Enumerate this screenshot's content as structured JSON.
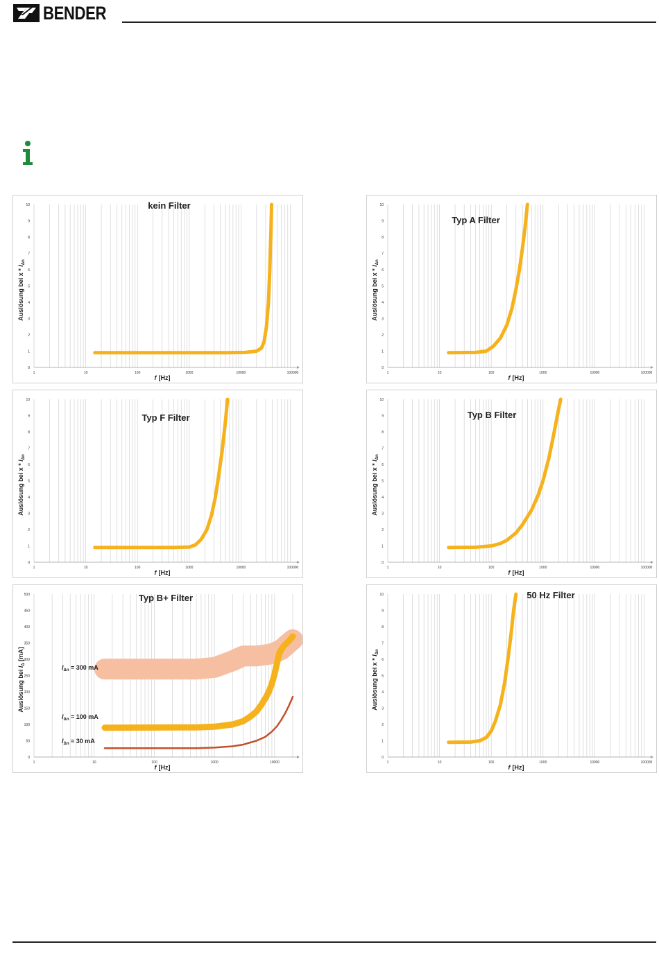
{
  "header": {
    "brand": "BENDER",
    "logo_icon": "bender-logo-icon"
  },
  "info_icon": "info-icon",
  "colors": {
    "curve": "#F5B21C",
    "band_300": "#F6BFA2",
    "curve_30": "#C2502A",
    "grid": "#D2D2D2",
    "info": "#1E8A3C"
  },
  "chart_data": [
    {
      "type": "line",
      "title": "kein Filter",
      "x_scale": "log",
      "xlim": [
        1,
        100000
      ],
      "x_ticks": [
        "1",
        "10",
        "100",
        "1000",
        "10000",
        "100000"
      ],
      "ylim": [
        0,
        10
      ],
      "y_ticks": [
        "0",
        "1",
        "2",
        "3",
        "4",
        "5",
        "6",
        "7",
        "8",
        "9",
        "10"
      ],
      "xlabel_italic": "f",
      "xlabel_unit": "[Hz]",
      "ylabel_text": "Auslösung bei x * ",
      "ylabel_italic": "I",
      "ylabel_sub": "Δn",
      "series": [
        {
          "x": [
            15,
            1000,
            5000,
            12000,
            20000,
            25000,
            28000,
            31000,
            34000,
            36000,
            38000,
            39000
          ],
          "y": [
            0.9,
            0.9,
            0.9,
            0.92,
            1.0,
            1.2,
            1.6,
            2.5,
            4.0,
            6.0,
            8.5,
            10
          ]
        }
      ]
    },
    {
      "type": "line",
      "title": "Typ A Filter",
      "x_scale": "log",
      "xlim": [
        1,
        100000
      ],
      "x_ticks": [
        "1",
        "10",
        "100",
        "1000",
        "10000",
        "100000"
      ],
      "ylim": [
        0,
        10
      ],
      "y_ticks": [
        "0",
        "1",
        "2",
        "3",
        "4",
        "5",
        "6",
        "7",
        "8",
        "9",
        "10"
      ],
      "xlabel_italic": "f",
      "xlabel_unit": "[Hz]",
      "ylabel_text": "Auslösung bei x * ",
      "ylabel_italic": "I",
      "ylabel_sub": "Δn",
      "series": [
        {
          "x": [
            15,
            50,
            80,
            110,
            150,
            200,
            250,
            300,
            350,
            400,
            450,
            500
          ],
          "y": [
            0.9,
            0.92,
            1.0,
            1.3,
            1.8,
            2.6,
            3.6,
            4.8,
            6.0,
            7.3,
            8.6,
            10
          ]
        }
      ]
    },
    {
      "type": "line",
      "title": "Typ F Filter",
      "x_scale": "log",
      "xlim": [
        1,
        100000
      ],
      "x_ticks": [
        "1",
        "10",
        "100",
        "1000",
        "10000",
        "100000"
      ],
      "ylim": [
        0,
        10
      ],
      "y_ticks": [
        "0",
        "1",
        "2",
        "3",
        "4",
        "5",
        "6",
        "7",
        "8",
        "9",
        "10"
      ],
      "xlabel_italic": "f",
      "xlabel_unit": "[Hz]",
      "ylabel_text": "Auslösung bei x * ",
      "ylabel_italic": "I",
      "ylabel_sub": "Δn",
      "series": [
        {
          "x": [
            15,
            500,
            1000,
            1300,
            1700,
            2200,
            2700,
            3200,
            3700,
            4300,
            5000,
            5500
          ],
          "y": [
            0.9,
            0.9,
            0.93,
            1.05,
            1.4,
            2.0,
            2.9,
            4.0,
            5.3,
            6.8,
            8.6,
            10
          ]
        }
      ]
    },
    {
      "type": "line",
      "title": "Typ B Filter",
      "x_scale": "log",
      "xlim": [
        1,
        100000
      ],
      "x_ticks": [
        "1",
        "10",
        "100",
        "1000",
        "10000",
        "100000"
      ],
      "ylim": [
        0,
        10
      ],
      "y_ticks": [
        "0",
        "1",
        "2",
        "3",
        "4",
        "5",
        "6",
        "7",
        "8",
        "9",
        "10"
      ],
      "xlabel_italic": "f",
      "xlabel_unit": "[Hz]",
      "ylabel_text": "Auslösung bei x * ",
      "ylabel_italic": "I",
      "ylabel_sub": "Δn",
      "series": [
        {
          "x": [
            15,
            50,
            100,
            150,
            200,
            300,
            400,
            600,
            800,
            1000,
            1300,
            1600,
            2000,
            2200
          ],
          "y": [
            0.9,
            0.92,
            1.0,
            1.15,
            1.35,
            1.8,
            2.3,
            3.2,
            4.1,
            5.0,
            6.4,
            7.8,
            9.4,
            10
          ]
        }
      ]
    },
    {
      "type": "line",
      "title": "Typ B+ Filter",
      "x_scale": "log",
      "xlim": [
        1,
        20000
      ],
      "x_ticks": [
        "1",
        "10",
        "100",
        "1000",
        "10000"
      ],
      "ylim": [
        0,
        500
      ],
      "y_ticks": [
        "0",
        "50",
        "100",
        "150",
        "200",
        "250",
        "300",
        "350",
        "400",
        "450",
        "500"
      ],
      "xlabel_italic": "f",
      "xlabel_unit": "[Hz]",
      "ylabel_text": "Auslösung bei ",
      "ylabel_italic": "I",
      "ylabel_sub": "Δ",
      "ylabel_unit": " [mA]",
      "series": [
        {
          "name_italic": "I",
          "name_sub": "Δn",
          "name_rest": " = 300 mA",
          "x": [
            15,
            100,
            500,
            1000,
            2000,
            3000,
            5000,
            8000,
            10000,
            13000,
            16000,
            20000
          ],
          "y": [
            270,
            270,
            270,
            275,
            295,
            310,
            310,
            315,
            320,
            330,
            345,
            360
          ]
        },
        {
          "name_italic": "I",
          "name_sub": "Δn",
          "name_rest": " = 100 mA",
          "x": [
            15,
            500,
            1000,
            2000,
            3000,
            4000,
            5000,
            6000,
            7000,
            8000,
            9000,
            10000,
            11000,
            12000,
            14000,
            16000,
            18000,
            20000
          ],
          "y": [
            90,
            91,
            93,
            100,
            110,
            125,
            140,
            160,
            180,
            200,
            225,
            255,
            290,
            320,
            340,
            350,
            360,
            370
          ]
        },
        {
          "name_italic": "I",
          "name_sub": "Δn",
          "name_rest": " = 30 mA",
          "x": [
            15,
            500,
            1000,
            2000,
            3000,
            5000,
            7000,
            9000,
            11000,
            13000,
            15000,
            17000,
            19000,
            20000
          ],
          "y": [
            27,
            27,
            29,
            33,
            38,
            50,
            62,
            78,
            95,
            115,
            135,
            155,
            175,
            185
          ]
        }
      ]
    },
    {
      "type": "line",
      "title": "50 Hz Filter",
      "x_scale": "log",
      "xlim": [
        1,
        100000
      ],
      "x_ticks": [
        "1",
        "10",
        "100",
        "1000",
        "10000",
        "100000"
      ],
      "ylim": [
        0,
        10
      ],
      "y_ticks": [
        "0",
        "1",
        "2",
        "3",
        "4",
        "5",
        "6",
        "7",
        "8",
        "9",
        "10"
      ],
      "xlabel_italic": "f",
      "xlabel_unit": "[Hz]",
      "ylabel_text": "Auslösung bei x * ",
      "ylabel_italic": "I",
      "ylabel_sub": "Δn",
      "series": [
        {
          "x": [
            15,
            40,
            60,
            80,
            100,
            120,
            150,
            180,
            210,
            240,
            270,
            300
          ],
          "y": [
            0.9,
            0.92,
            1.0,
            1.2,
            1.6,
            2.2,
            3.2,
            4.5,
            6.0,
            7.5,
            9.0,
            10
          ]
        }
      ]
    }
  ]
}
